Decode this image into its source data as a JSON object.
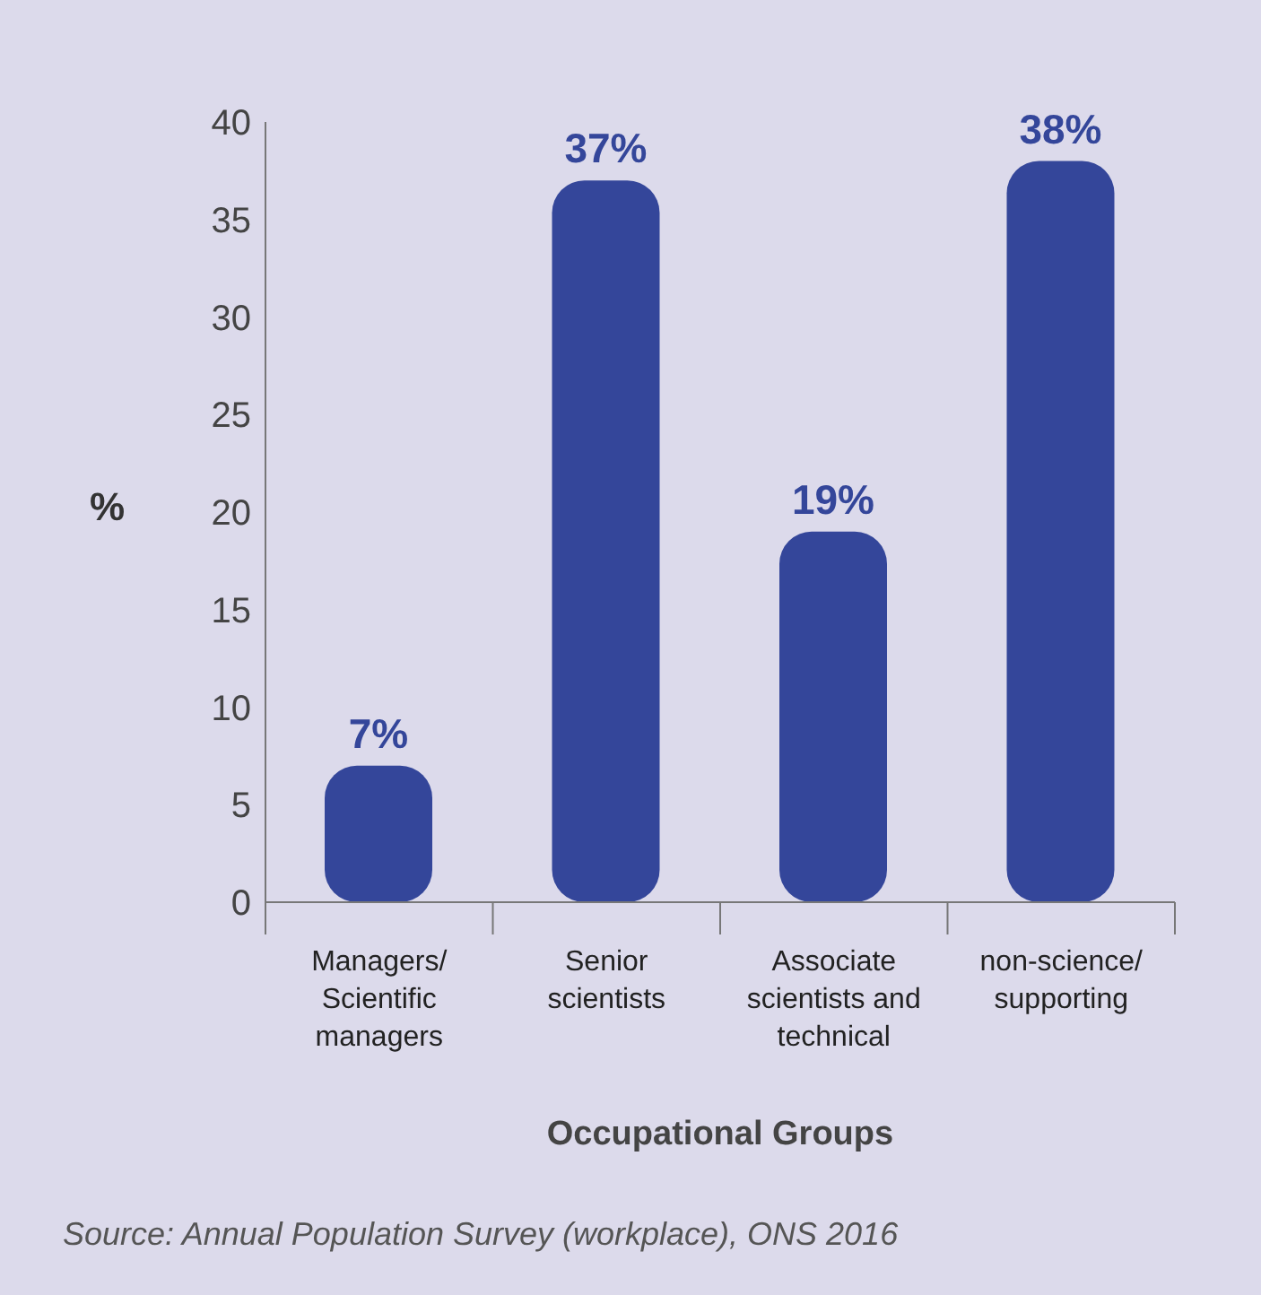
{
  "chart_data": {
    "type": "bar",
    "xlabel": "Occupational Groups",
    "ylabel": "%",
    "categories": [
      "Managers/ Scientific managers",
      "Senior scientists",
      "Associate scientists and technical",
      "non-science/ supporting"
    ],
    "values": [
      7,
      37,
      19,
      38
    ],
    "value_labels": [
      "7%",
      "37%",
      "19%",
      "38%"
    ],
    "color": "#34469a",
    "ylim": [
      0,
      40
    ],
    "yticks": [
      0,
      5,
      10,
      15,
      20,
      25,
      30,
      35,
      40
    ],
    "annotations": [
      "Source: Annual Population Survey (workplace), ONS 2016"
    ]
  }
}
